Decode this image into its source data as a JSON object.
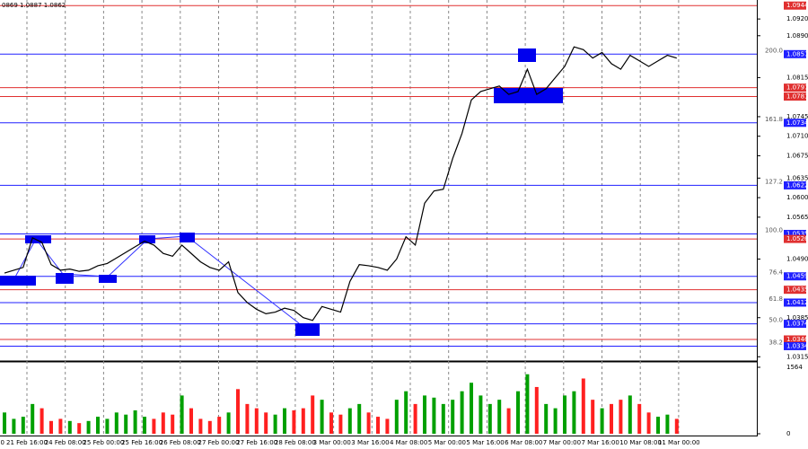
{
  "chart_data": {
    "type": "line",
    "title": "0869 1.0887 1.0862",
    "series": [
      {
        "name": "Close",
        "color": "#000000",
        "values": [
          1.0465,
          1.047,
          1.0475,
          1.0528,
          1.052,
          1.048,
          1.047,
          1.0472,
          1.0468,
          1.047,
          1.0478,
          1.0482,
          1.0492,
          1.0502,
          1.0512,
          1.0522,
          1.0515,
          1.05,
          1.0495,
          1.0515,
          1.05,
          1.0485,
          1.0475,
          1.047,
          1.0485,
          1.043,
          1.0412,
          1.04,
          1.0392,
          1.0395,
          1.0402,
          1.0398,
          1.0385,
          1.038,
          1.0405,
          1.04,
          1.0395,
          1.045,
          1.048,
          1.0478,
          1.0475,
          1.047,
          1.049,
          1.053,
          1.0515,
          1.059,
          1.0612,
          1.0615,
          1.067,
          1.0715,
          1.0775,
          1.079,
          1.0795,
          1.08,
          1.0785,
          1.079,
          1.083,
          1.0785,
          1.0795,
          1.0815,
          1.0835,
          1.087,
          1.0865,
          1.085,
          1.086,
          1.084,
          1.083,
          1.0855,
          1.0845,
          1.0835,
          1.0845,
          1.0855,
          1.085
        ]
      }
    ],
    "volume": {
      "up_color": "#00a000",
      "down_color": "#ff2020",
      "values": [
        500,
        350,
        400,
        700,
        600,
        300,
        350,
        300,
        250,
        300,
        400,
        350,
        500,
        450,
        550,
        400,
        350,
        500,
        450,
        900,
        600,
        350,
        300,
        400,
        500,
        1050,
        700,
        600,
        500,
        450,
        600,
        550,
        600,
        900,
        800,
        500,
        450,
        600,
        700,
        500,
        400,
        350,
        800,
        1000,
        700,
        900,
        850,
        700,
        800,
        1000,
        1200,
        900,
        700,
        800,
        600,
        1000,
        1400,
        1100,
        700,
        600,
        900,
        1000,
        1300,
        800,
        600,
        700,
        800,
        900,
        700,
        500,
        400,
        450,
        350
      ],
      "vlim": [
        0,
        1564
      ],
      "vticks": [
        1564,
        0
      ]
    },
    "ylim": [
      1.0309,
      1.0954
    ],
    "yticks": [
      {
        "value": 1.092,
        "label": "1.0920"
      },
      {
        "value": 1.089,
        "label": "1.0890"
      },
      1.0815,
      1.0745,
      {
        "value": 1.071,
        "label": "1.0710"
      },
      1.0675,
      1.0635,
      {
        "value": 1.06,
        "label": "1.0600"
      },
      1.0565,
      {
        "value": 1.049,
        "label": "1.0490"
      },
      1.0385,
      1.0315
    ],
    "levels": [
      {
        "value": 1.0944,
        "color": "#e03030"
      },
      {
        "value": 1.0857,
        "color": "#2020ff",
        "fib": "200.0"
      },
      {
        "value": 1.0797,
        "color": "#e03030"
      },
      {
        "value": 1.0781,
        "color": "#e03030"
      },
      {
        "value": 1.0734,
        "color": "#2020ff",
        "fib": "161.8"
      },
      {
        "value": 1.0622,
        "color": "#2020ff",
        "fib": "127.2"
      },
      {
        "value": 1.0535,
        "color": "#2020ff",
        "fib": "100.0"
      },
      {
        "value": 1.0526,
        "color": "#e03030"
      },
      {
        "value": 1.0459,
        "color": "#2020ff",
        "fib": "76.4"
      },
      {
        "value": 1.0435,
        "color": "#e03030"
      },
      {
        "value": 1.0412,
        "color": "#2020ff",
        "fib": "61.8"
      },
      {
        "value": 1.0374,
        "color": "#2020ff",
        "fib": "50.0"
      },
      {
        "value": 1.0346,
        "color": "#e03030"
      },
      {
        "value": 1.0334,
        "color": "#2020ff",
        "fib": "38.2"
      }
    ],
    "x_edge_label": "0",
    "x_labels": [
      "21 Feb 16:00",
      "24 Feb 08:00",
      "25 Feb 00:00",
      "25 Feb 16:00",
      "26 Feb 08:00",
      "27 Feb 00:00",
      "27 Feb 16:00",
      "28 Feb 08:00",
      "3 Mar 00:00",
      "3 Mar 16:00",
      "4 Mar 08:00",
      "5 Mar 00:00",
      "5 Mar 16:00",
      "6 Mar 08:00",
      "7 Mar 00:00",
      "7 Mar 16:00",
      "10 Mar 08:00",
      "11 Mar 00:00"
    ]
  }
}
